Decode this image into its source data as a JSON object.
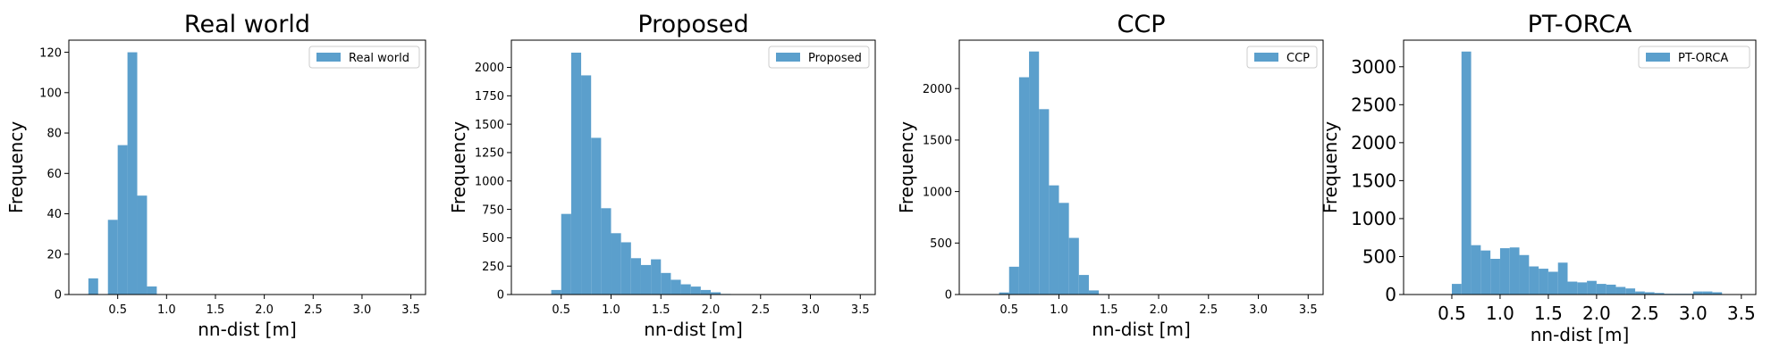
{
  "chart_data": [
    {
      "type": "bar",
      "title": "Real world",
      "xlabel": "nn-dist [m]",
      "ylabel": "Frequency",
      "legend": "Real world",
      "legend_position": "top-right",
      "grid": false,
      "color": "#5B9FCC",
      "xlim": [
        0.0,
        3.65
      ],
      "ylim": [
        0,
        126
      ],
      "xticks": [
        "0.5",
        "1.0",
        "1.5",
        "2.0",
        "2.5",
        "3.0",
        "3.5"
      ],
      "xtick_values": [
        0.5,
        1.0,
        1.5,
        2.0,
        2.5,
        3.0,
        3.5
      ],
      "yticks": [
        "0",
        "20",
        "40",
        "60",
        "80",
        "100",
        "120"
      ],
      "ytick_values": [
        0,
        20,
        40,
        60,
        80,
        100,
        120
      ],
      "bin_width": 0.1,
      "bin_starts": [
        0.2,
        0.4,
        0.5,
        0.6,
        0.7,
        0.8
      ],
      "values": [
        8,
        37,
        74,
        120,
        49,
        4
      ]
    },
    {
      "type": "bar",
      "title": "Proposed",
      "xlabel": "nn-dist [m]",
      "ylabel": "Frequency",
      "legend": "Proposed",
      "legend_position": "top-right",
      "grid": false,
      "color": "#5B9FCC",
      "xlim": [
        0.0,
        3.65
      ],
      "ylim": [
        0,
        2240
      ],
      "xticks": [
        "0.5",
        "1.0",
        "1.5",
        "2.0",
        "2.5",
        "3.0",
        "3.5"
      ],
      "xtick_values": [
        0.5,
        1.0,
        1.5,
        2.0,
        2.5,
        3.0,
        3.5
      ],
      "yticks": [
        "0",
        "250",
        "500",
        "750",
        "1000",
        "1250",
        "1500",
        "1750",
        "2000"
      ],
      "ytick_values": [
        0,
        250,
        500,
        750,
        1000,
        1250,
        1500,
        1750,
        2000
      ],
      "bin_width": 0.1,
      "bin_starts": [
        0.4,
        0.5,
        0.6,
        0.7,
        0.8,
        0.9,
        1.0,
        1.1,
        1.2,
        1.3,
        1.4,
        1.5,
        1.6,
        1.7,
        1.8,
        1.9,
        2.0,
        2.1
      ],
      "values": [
        40,
        710,
        2130,
        1930,
        1380,
        760,
        540,
        460,
        320,
        260,
        310,
        190,
        130,
        90,
        70,
        40,
        20,
        5
      ]
    },
    {
      "type": "bar",
      "title": "CCP",
      "xlabel": "nn-dist [m]",
      "ylabel": "Frequency",
      "legend": "CCP",
      "legend_position": "top-right",
      "grid": false,
      "color": "#5B9FCC",
      "xlim": [
        0.0,
        3.65
      ],
      "ylim": [
        0,
        2470
      ],
      "xticks": [
        "0.5",
        "1.0",
        "1.5",
        "2.0",
        "2.5",
        "3.0",
        "3.5"
      ],
      "xtick_values": [
        0.5,
        1.0,
        1.5,
        2.0,
        2.5,
        3.0,
        3.5
      ],
      "yticks": [
        "0",
        "500",
        "1000",
        "1500",
        "2000"
      ],
      "ytick_values": [
        0,
        500,
        1000,
        1500,
        2000
      ],
      "bin_width": 0.1,
      "bin_starts": [
        0.4,
        0.5,
        0.6,
        0.7,
        0.8,
        0.9,
        1.0,
        1.1,
        1.2,
        1.3,
        1.4
      ],
      "values": [
        20,
        270,
        2110,
        2360,
        1800,
        1060,
        890,
        550,
        190,
        40,
        5
      ]
    },
    {
      "type": "bar",
      "title": "PT-ORCA",
      "xlabel": "nn-dist [m]",
      "ylabel": "Frequency",
      "legend": "PT-ORCA",
      "legend_position": "top-right",
      "grid": false,
      "color": "#5B9FCC",
      "xlim": [
        0.0,
        3.65
      ],
      "ylim": [
        0,
        3350
      ],
      "xticks": [
        "0.5",
        "1.0",
        "1.5",
        "2.0",
        "2.5",
        "3.0",
        "3.5"
      ],
      "xtick_values": [
        0.5,
        1.0,
        1.5,
        2.0,
        2.5,
        3.0,
        3.5
      ],
      "yticks": [
        "0",
        "500",
        "1000",
        "1500",
        "2000",
        "2500",
        "3000"
      ],
      "ytick_values": [
        0,
        500,
        1000,
        1500,
        2000,
        2500,
        3000
      ],
      "bin_width": 0.1,
      "bin_starts": [
        0.5,
        0.6,
        0.7,
        0.8,
        0.9,
        1.0,
        1.1,
        1.2,
        1.3,
        1.4,
        1.5,
        1.6,
        1.7,
        1.8,
        1.9,
        2.0,
        2.1,
        2.2,
        2.3,
        2.4,
        2.5,
        2.6,
        2.7,
        2.8,
        2.9,
        3.0,
        3.1,
        3.2
      ],
      "values": [
        140,
        3200,
        650,
        580,
        470,
        610,
        620,
        520,
        370,
        340,
        300,
        420,
        170,
        160,
        180,
        140,
        130,
        100,
        80,
        40,
        30,
        20,
        10,
        10,
        10,
        40,
        40,
        30
      ]
    }
  ]
}
